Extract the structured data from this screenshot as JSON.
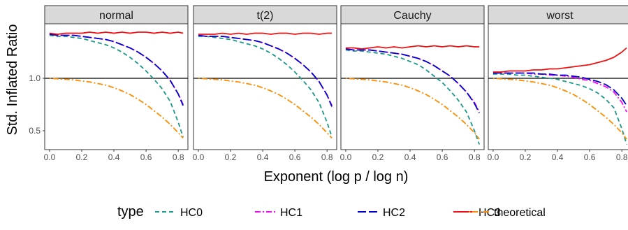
{
  "chart_data": {
    "type": "line",
    "xlabel": "Exponent (log p / log n)",
    "ylabel": "Std. Inflated Ratio",
    "xlim": [
      -0.03,
      0.86
    ],
    "ylim": [
      0.32,
      1.52
    ],
    "x_ticks": [
      0.0,
      0.2,
      0.4,
      0.6,
      0.8
    ],
    "x_tick_labels": [
      "0.0",
      "0.2",
      "0.4",
      "0.6",
      "0.8"
    ],
    "y_ticks": [
      0.5,
      1.0
    ],
    "y_tick_labels": [
      "0.5",
      "1.0"
    ],
    "reference_line": 1.0,
    "legend": {
      "title": "type",
      "position": "bottom",
      "entries": [
        {
          "label": "HC0",
          "color": "#1a9988",
          "dash": "dashed"
        },
        {
          "label": "HC1",
          "color": "#ff00ff",
          "dash": "dashdot"
        },
        {
          "label": "HC2",
          "color": "#0000cc",
          "dash": "longdash"
        },
        {
          "label": "HC3",
          "color": "#ee1111",
          "dash": "solid"
        },
        {
          "label": "theoretical",
          "color": "#ff8c00",
          "dash": "dotdash"
        }
      ]
    },
    "x": [
      0.0,
      0.05,
      0.1,
      0.15,
      0.2,
      0.25,
      0.3,
      0.35,
      0.4,
      0.45,
      0.5,
      0.55,
      0.6,
      0.65,
      0.7,
      0.75,
      0.8,
      0.83
    ],
    "panels": [
      {
        "label": "normal",
        "series": [
          {
            "type": "HC0",
            "values": [
              1.41,
              1.4,
              1.4,
              1.39,
              1.38,
              1.36,
              1.34,
              1.32,
              1.29,
              1.25,
              1.2,
              1.14,
              1.07,
              0.99,
              0.9,
              0.78,
              0.58,
              0.44
            ]
          },
          {
            "type": "HC1",
            "values": [
              1.42,
              1.41,
              1.41,
              1.41,
              1.4,
              1.39,
              1.38,
              1.37,
              1.35,
              1.32,
              1.29,
              1.25,
              1.2,
              1.14,
              1.07,
              0.98,
              0.85,
              0.75
            ]
          },
          {
            "type": "HC2",
            "values": [
              1.42,
              1.41,
              1.41,
              1.41,
              1.4,
              1.39,
              1.38,
              1.37,
              1.35,
              1.32,
              1.29,
              1.25,
              1.2,
              1.14,
              1.07,
              0.98,
              0.85,
              0.74
            ]
          },
          {
            "type": "HC3",
            "values": [
              1.43,
              1.42,
              1.43,
              1.43,
              1.43,
              1.44,
              1.43,
              1.44,
              1.43,
              1.44,
              1.43,
              1.44,
              1.44,
              1.43,
              1.44,
              1.43,
              1.44,
              1.43
            ]
          },
          {
            "type": "theoretical",
            "values": [
              1.0,
              0.995,
              0.99,
              0.985,
              0.975,
              0.965,
              0.95,
              0.935,
              0.91,
              0.88,
              0.845,
              0.8,
              0.75,
              0.69,
              0.63,
              0.56,
              0.48,
              0.43
            ]
          }
        ]
      },
      {
        "label": "t(2)",
        "series": [
          {
            "type": "HC0",
            "values": [
              1.4,
              1.4,
              1.39,
              1.38,
              1.37,
              1.35,
              1.33,
              1.31,
              1.28,
              1.24,
              1.19,
              1.13,
              1.06,
              0.98,
              0.89,
              0.77,
              0.58,
              0.44
            ]
          },
          {
            "type": "HC1",
            "values": [
              1.41,
              1.4,
              1.4,
              1.4,
              1.39,
              1.38,
              1.37,
              1.36,
              1.34,
              1.31,
              1.28,
              1.24,
              1.19,
              1.13,
              1.06,
              0.97,
              0.84,
              0.74
            ]
          },
          {
            "type": "HC2",
            "values": [
              1.41,
              1.4,
              1.4,
              1.4,
              1.39,
              1.38,
              1.37,
              1.36,
              1.34,
              1.31,
              1.28,
              1.24,
              1.19,
              1.13,
              1.06,
              0.97,
              0.84,
              0.73
            ]
          },
          {
            "type": "HC3",
            "values": [
              1.42,
              1.42,
              1.42,
              1.43,
              1.42,
              1.43,
              1.42,
              1.43,
              1.43,
              1.42,
              1.43,
              1.43,
              1.42,
              1.43,
              1.43,
              1.42,
              1.43,
              1.43
            ]
          },
          {
            "type": "theoretical",
            "values": [
              1.0,
              0.995,
              0.99,
              0.985,
              0.975,
              0.965,
              0.95,
              0.935,
              0.91,
              0.88,
              0.845,
              0.8,
              0.75,
              0.69,
              0.63,
              0.56,
              0.48,
              0.43
            ]
          }
        ]
      },
      {
        "label": "Cauchy",
        "series": [
          {
            "type": "HC0",
            "values": [
              1.27,
              1.26,
              1.26,
              1.25,
              1.24,
              1.23,
              1.21,
              1.19,
              1.16,
              1.13,
              1.08,
              1.02,
              0.96,
              0.88,
              0.79,
              0.68,
              0.5,
              0.37
            ]
          },
          {
            "type": "HC1",
            "values": [
              1.28,
              1.27,
              1.27,
              1.27,
              1.26,
              1.25,
              1.24,
              1.23,
              1.21,
              1.19,
              1.16,
              1.12,
              1.07,
              1.02,
              0.95,
              0.87,
              0.77,
              0.68
            ]
          },
          {
            "type": "HC2",
            "values": [
              1.28,
              1.27,
              1.27,
              1.27,
              1.26,
              1.25,
              1.24,
              1.23,
              1.21,
              1.19,
              1.16,
              1.12,
              1.07,
              1.02,
              0.95,
              0.87,
              0.76,
              0.67
            ]
          },
          {
            "type": "HC3",
            "values": [
              1.29,
              1.29,
              1.28,
              1.29,
              1.3,
              1.29,
              1.3,
              1.29,
              1.3,
              1.31,
              1.3,
              1.31,
              1.3,
              1.31,
              1.3,
              1.31,
              1.3,
              1.3
            ]
          },
          {
            "type": "theoretical",
            "values": [
              1.0,
              0.995,
              0.99,
              0.985,
              0.975,
              0.965,
              0.95,
              0.935,
              0.91,
              0.88,
              0.845,
              0.8,
              0.75,
              0.69,
              0.63,
              0.56,
              0.48,
              0.42
            ]
          }
        ]
      },
      {
        "label": "worst",
        "series": [
          {
            "type": "HC0",
            "values": [
              1.04,
              1.04,
              1.04,
              1.03,
              1.03,
              1.02,
              1.01,
              1.0,
              0.99,
              0.97,
              0.95,
              0.93,
              0.9,
              0.86,
              0.8,
              0.72,
              0.52,
              0.37
            ]
          },
          {
            "type": "HC1",
            "values": [
              1.05,
              1.05,
              1.05,
              1.05,
              1.05,
              1.04,
              1.04,
              1.03,
              1.03,
              1.02,
              1.01,
              0.99,
              0.98,
              0.95,
              0.92,
              0.87,
              0.77,
              0.68
            ]
          },
          {
            "type": "HC2",
            "values": [
              1.05,
              1.05,
              1.05,
              1.05,
              1.05,
              1.05,
              1.04,
              1.04,
              1.03,
              1.03,
              1.02,
              1.01,
              0.99,
              0.97,
              0.94,
              0.89,
              0.81,
              0.74
            ]
          },
          {
            "type": "HC3",
            "values": [
              1.06,
              1.06,
              1.07,
              1.07,
              1.07,
              1.08,
              1.08,
              1.09,
              1.09,
              1.1,
              1.11,
              1.12,
              1.13,
              1.15,
              1.17,
              1.2,
              1.25,
              1.29
            ]
          },
          {
            "type": "theoretical",
            "values": [
              1.0,
              0.995,
              0.99,
              0.985,
              0.975,
              0.965,
              0.95,
              0.935,
              0.91,
              0.88,
              0.845,
              0.8,
              0.75,
              0.69,
              0.63,
              0.56,
              0.48,
              0.42
            ]
          }
        ]
      }
    ]
  }
}
